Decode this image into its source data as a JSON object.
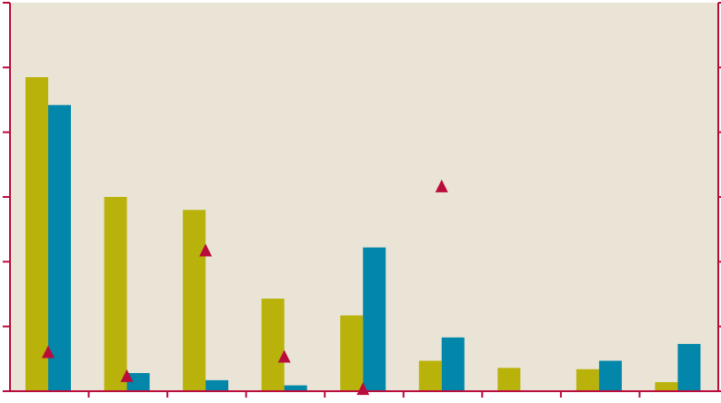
{
  "chart_data": {
    "type": "bar",
    "categories": [
      "",
      "",
      "",
      "",
      "",
      "",
      "",
      "",
      ""
    ],
    "series": [
      {
        "kind": "bar",
        "axis": "left",
        "color": "#b9b20a",
        "values": [
          48.5,
          30.0,
          28.0,
          14.3,
          11.7,
          4.7,
          3.6,
          3.4,
          1.4
        ]
      },
      {
        "kind": "bar",
        "axis": "left",
        "color": "#0286aa",
        "values": [
          44.2,
          2.8,
          1.7,
          0.9,
          22.2,
          8.3,
          0.0,
          4.7,
          7.3
        ]
      },
      {
        "kind": "marker",
        "axis": "left",
        "color": "#ba0c3c",
        "marker": "triangle",
        "values": [
          6.1,
          2.4,
          21.8,
          5.4,
          0.4,
          31.7,
          null,
          null,
          null
        ]
      }
    ],
    "ylim": [
      0,
      60
    ],
    "yticks": [
      0,
      10,
      20,
      30,
      40,
      50,
      60
    ],
    "y2lim": [
      0,
      60
    ],
    "y2ticks": [
      0,
      10,
      20,
      30,
      40,
      50,
      60
    ],
    "grid": false,
    "colors": {
      "plot_background": "#e9e4d5",
      "axis": "#ba0c3c"
    }
  }
}
